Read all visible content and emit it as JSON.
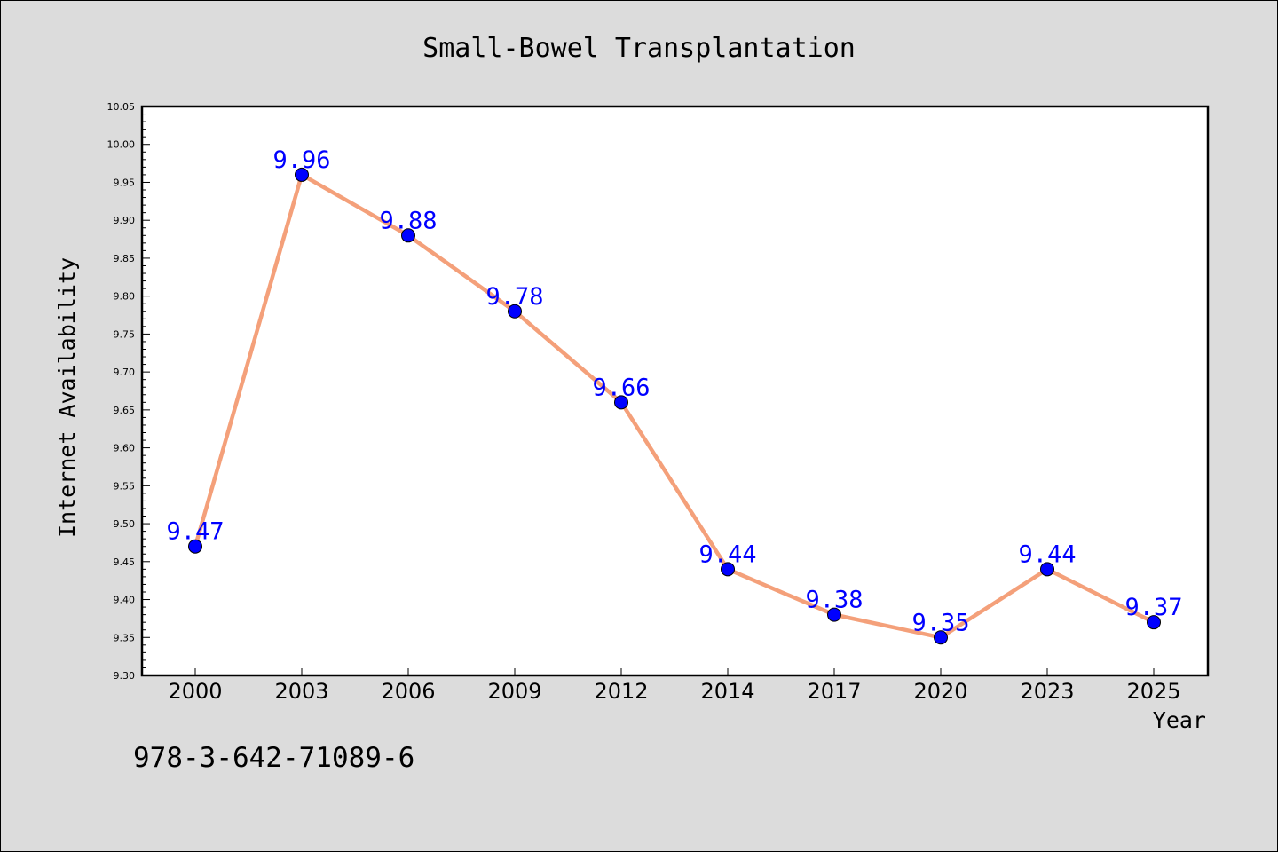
{
  "chart_data": {
    "type": "line",
    "title": "Small-Bowel Transplantation",
    "xlabel": "Year",
    "ylabel": "Internet Availability",
    "x": [
      "2000",
      "2003",
      "2006",
      "2009",
      "2012",
      "2014",
      "2017",
      "2020",
      "2023",
      "2025"
    ],
    "series": [
      {
        "values": [
          9.47,
          9.96,
          9.88,
          9.78,
          9.66,
          9.44,
          9.38,
          9.35,
          9.44,
          9.37
        ],
        "data_labels": [
          "9.47",
          "9.96",
          "9.88",
          "9.78",
          "9.66",
          "9.44",
          "9.38",
          "9.35",
          "9.44",
          "9.37"
        ],
        "line_color": "#f4a07a",
        "marker_color": "#0000ff"
      }
    ],
    "ylim": [
      9.3,
      10.05
    ],
    "yticks": [
      "9.30",
      "9.35",
      "9.40",
      "9.45",
      "9.50",
      "9.55",
      "9.60",
      "9.65",
      "9.70",
      "9.75",
      "9.80",
      "9.85",
      "9.90",
      "9.95",
      "10.00",
      "10.05"
    ],
    "grid": false,
    "legend": "none",
    "background_color": "#dcdcdc",
    "plot_background_color": "#ffffff"
  },
  "footer": {
    "isbn": "978-3-642-71089-6"
  }
}
